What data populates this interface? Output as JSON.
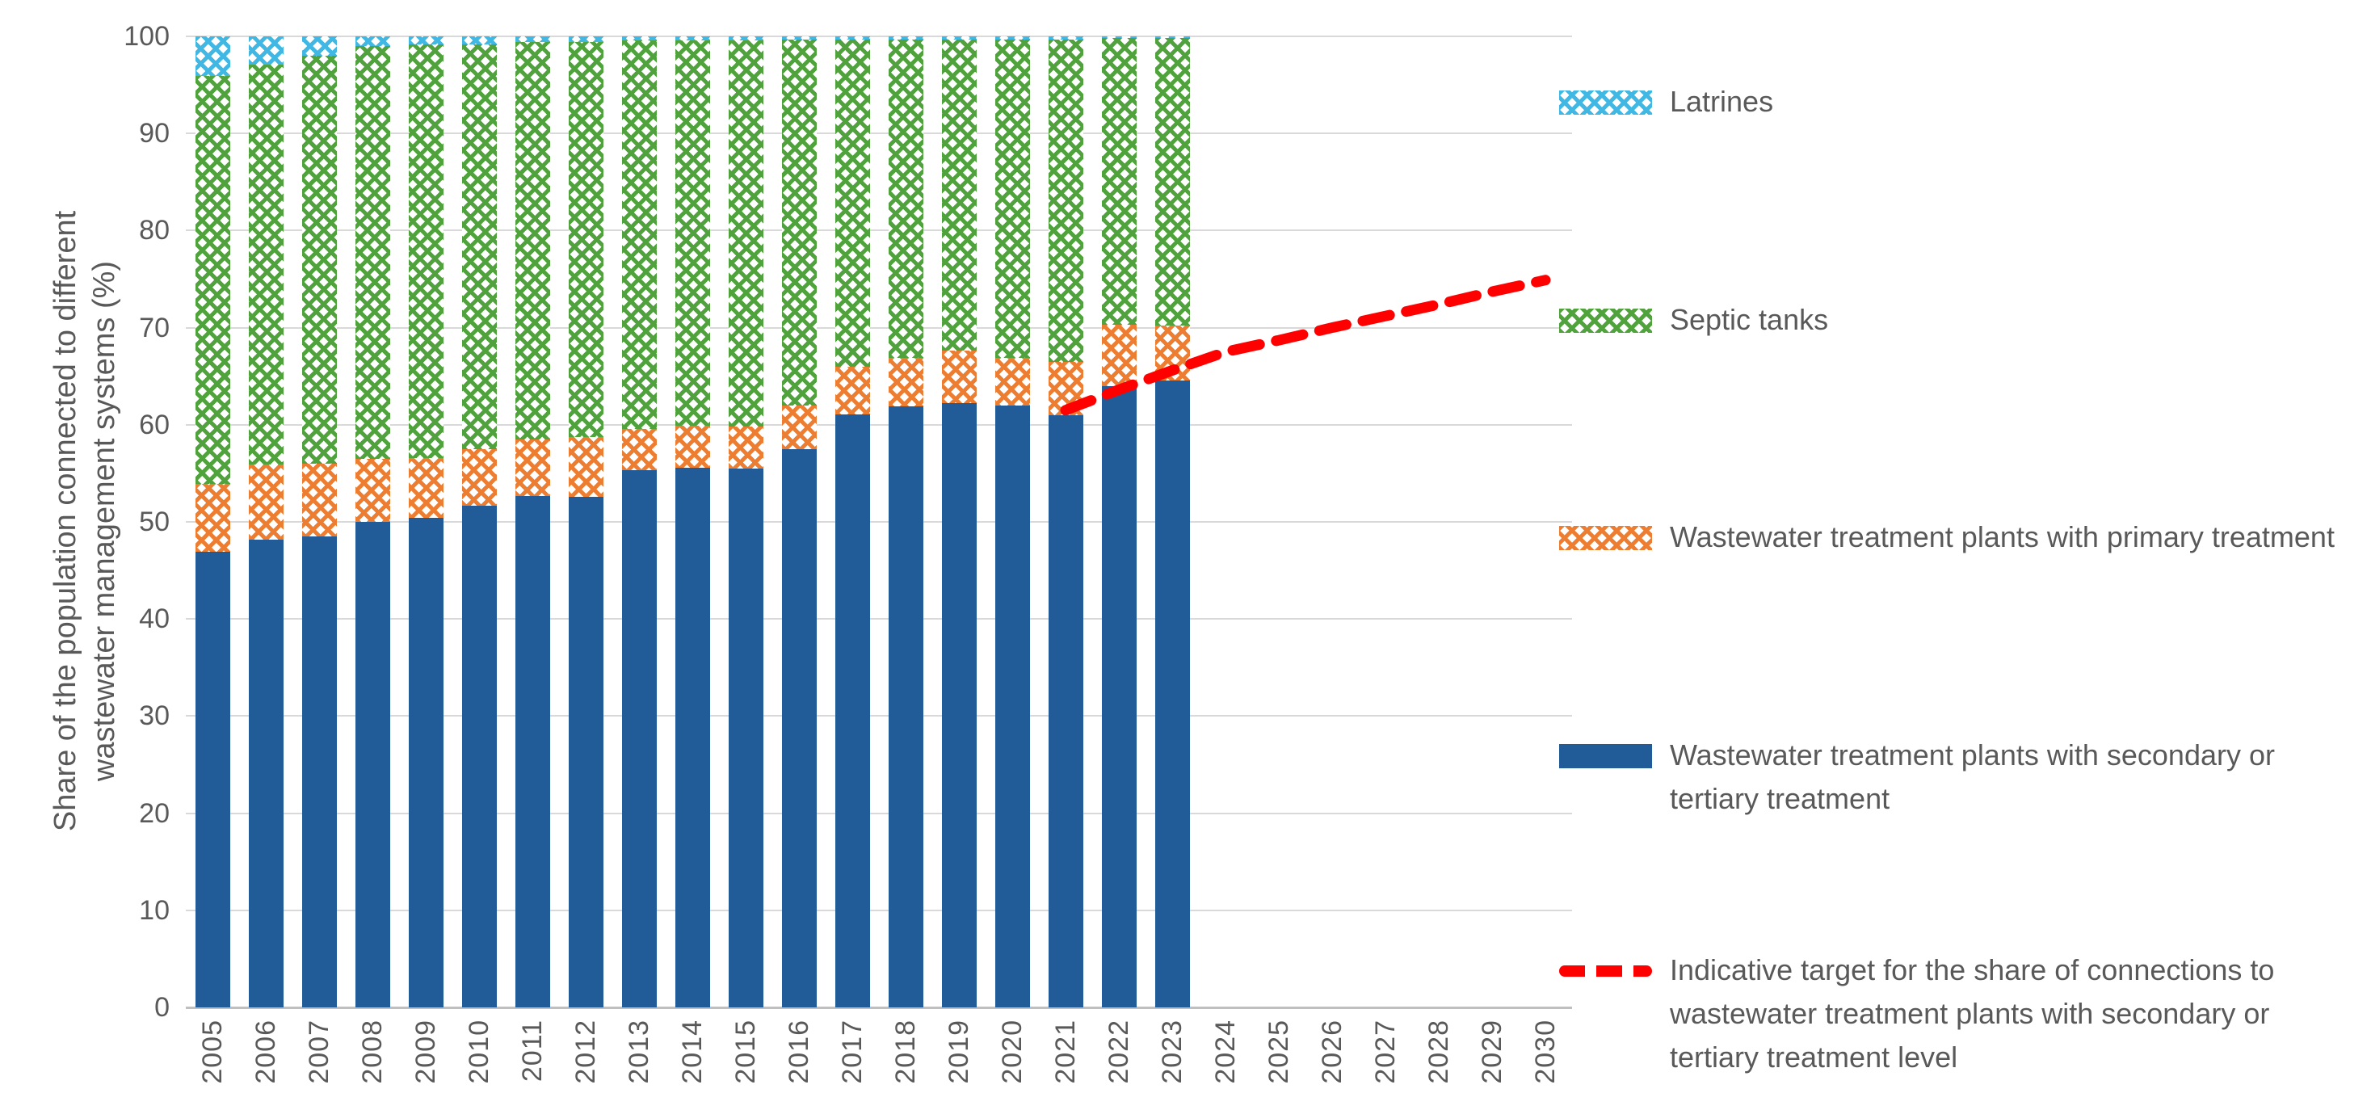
{
  "colors": {
    "secondary": "#215c98",
    "primary": "#ed7d31",
    "septic": "#4fa23c",
    "latrines": "#41b8e4",
    "target": "#ff0000",
    "gridline": "#d9d9d9",
    "axis_line": "#bfbfbf",
    "text": "#595959",
    "background": "#ffffff"
  },
  "y_axis": {
    "title": "Share of the population connected to different wastewater management systems (%)",
    "title_lines": [
      "Share of the population connected to different",
      "wastewater management systems (%)"
    ],
    "ticks": [
      0,
      10,
      20,
      30,
      40,
      50,
      60,
      70,
      80,
      90,
      100
    ]
  },
  "chart_data": {
    "type": "bar",
    "stacked": true,
    "grid": true,
    "legend_position": "right",
    "ylabel": "Share of the population connected to different wastewater management systems (%)",
    "xlabel": "",
    "ylim": [
      0,
      100
    ],
    "categories": [
      "2005",
      "2006",
      "2007",
      "2008",
      "2009",
      "2010",
      "2011",
      "2012",
      "2013",
      "2014",
      "2015",
      "2016",
      "2017",
      "2018",
      "2019",
      "2020",
      "2021",
      "2022",
      "2023",
      "2024",
      "2025",
      "2026",
      "2027",
      "2028",
      "2029",
      "2030"
    ],
    "series": [
      {
        "key": "secondary",
        "name": "Wastewater treatment plants with secondary or tertiary treatment",
        "pattern": "solid",
        "color": "#215c98",
        "values": [
          46.9,
          48.2,
          48.5,
          50,
          50.4,
          51.7,
          52.7,
          52.6,
          55.3,
          55.6,
          55.5,
          57.5,
          61.1,
          61.9,
          62.2,
          62,
          61,
          64,
          64.6,
          null,
          null,
          null,
          null,
          null,
          null,
          null
        ]
      },
      {
        "key": "primary",
        "name": "Wastewater treatment plants with primary treatment",
        "pattern": "crosshatch",
        "color": "#ed7d31",
        "values": [
          7,
          7.7,
          7.5,
          6.5,
          6.2,
          5.8,
          5.8,
          6.1,
          4.3,
          4.3,
          4.3,
          4.5,
          4.9,
          5,
          5.4,
          4.9,
          5.5,
          6.3,
          5.6,
          null,
          null,
          null,
          null,
          null,
          null,
          null
        ]
      },
      {
        "key": "septic",
        "name": "Septic tanks",
        "pattern": "crosshatch",
        "color": "#4fa23c",
        "values": [
          42,
          41.2,
          42,
          42.5,
          42.6,
          41.7,
          40.9,
          40.7,
          40,
          39.7,
          39.8,
          37.7,
          33.7,
          32.8,
          32.1,
          32.8,
          33.2,
          29.5,
          29.6,
          null,
          null,
          null,
          null,
          null,
          null,
          null
        ]
      },
      {
        "key": "latrines",
        "name": "Latrines",
        "pattern": "crosshatch",
        "color": "#41b8e4",
        "values": [
          4.1,
          2.9,
          2,
          1,
          0.8,
          0.8,
          0.6,
          0.6,
          0.4,
          0.4,
          0.4,
          0.3,
          0.3,
          0.3,
          0.3,
          0.3,
          0.3,
          0.2,
          0.2,
          null,
          null,
          null,
          null,
          null,
          null,
          null
        ]
      }
    ],
    "target_line": {
      "name": "Indicative target for the share of connections to wastewater treatment plants with secondary or tertiary treatment level",
      "style": "dashed",
      "color": "#ff0000",
      "years": [
        "2021",
        "2022",
        "2023",
        "2024",
        "2025",
        "2026",
        "2027",
        "2028",
        "2029",
        "2030"
      ],
      "values": [
        61.5,
        63.6,
        65.6,
        67.5,
        68.7,
        70,
        71.2,
        72.4,
        73.7,
        74.9
      ]
    }
  },
  "legend": {
    "items": [
      {
        "key": "latrines",
        "swatch": "hatch-latrines",
        "label": "Latrines"
      },
      {
        "key": "septic",
        "swatch": "hatch-septic",
        "label": "Septic tanks"
      },
      {
        "key": "primary",
        "swatch": "hatch-primary",
        "label": "Wastewater treatment plants with primary treatment"
      },
      {
        "key": "secondary",
        "swatch": "solid-secondary",
        "label": "Wastewater treatment plants with secondary or tertiary treatment"
      },
      {
        "key": "target",
        "swatch": "dash-target",
        "label": "Indicative target for the share of connections to wastewater treatment plants with secondary or tertiary treatment level"
      }
    ]
  }
}
